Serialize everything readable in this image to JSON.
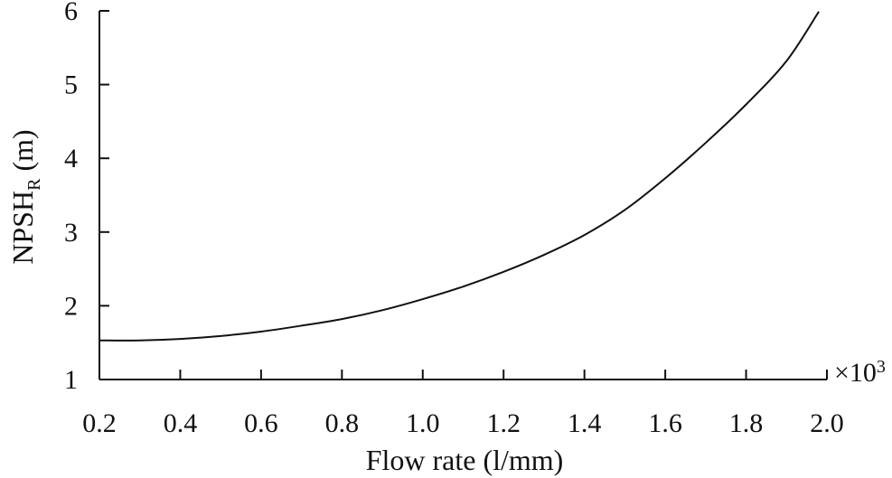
{
  "chart_data": {
    "type": "line",
    "title": "",
    "xlabel": "Flow rate (l/mm)",
    "ylabel_main": "NPSH",
    "ylabel_sub": "R",
    "ylabel_unit": " (m)",
    "x_multiplier_base": "×10",
    "x_multiplier_exp": "3",
    "xlim": [
      0.2,
      2.0
    ],
    "ylim": [
      1,
      6
    ],
    "xticks": [
      0.2,
      0.4,
      0.6,
      0.8,
      1.0,
      1.2,
      1.4,
      1.6,
      1.8,
      2.0
    ],
    "xtick_labels": [
      "0.2",
      "0.4",
      "0.6",
      "0.8",
      "1.0",
      "1.2",
      "1.4",
      "1.6",
      "1.8",
      "2.0"
    ],
    "yticks": [
      1,
      2,
      3,
      4,
      5,
      6
    ],
    "ytick_labels": [
      "1",
      "2",
      "3",
      "4",
      "5",
      "6"
    ],
    "grid": false,
    "series": [
      {
        "x": [
          0.2,
          0.3,
          0.4,
          0.5,
          0.6,
          0.7,
          0.8,
          0.9,
          1.0,
          1.1,
          1.2,
          1.3,
          1.4,
          1.5,
          1.6,
          1.7,
          1.8,
          1.9,
          1.98
        ],
        "y": [
          1.53,
          1.53,
          1.55,
          1.59,
          1.65,
          1.73,
          1.82,
          1.94,
          2.09,
          2.26,
          2.46,
          2.69,
          2.96,
          3.3,
          3.73,
          4.21,
          4.73,
          5.32,
          5.99
        ]
      }
    ]
  }
}
